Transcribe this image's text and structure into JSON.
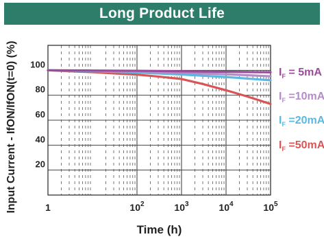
{
  "header": {
    "title": "Long Product Life",
    "background": "#2E7D6B"
  },
  "chart_data": {
    "type": "line",
    "title": "Long Product Life",
    "xlabel": "Time (h)",
    "ylabel": "Input Current - IfON/IfON(t=0) (%)",
    "x_scale": "log",
    "xlim": [
      1,
      100000
    ],
    "ylim": [
      0,
      120
    ],
    "x_ticks": [
      {
        "value": 1,
        "base": "1",
        "exp": ""
      },
      {
        "value": 100,
        "base": "10",
        "exp": "2"
      },
      {
        "value": 1000,
        "base": "10",
        "exp": "3"
      },
      {
        "value": 10000,
        "base": "10",
        "exp": "4"
      },
      {
        "value": 100000,
        "base": "10",
        "exp": "5"
      }
    ],
    "y_ticks": [
      20,
      40,
      60,
      80,
      100
    ],
    "grid": true,
    "legend_position": "right",
    "series": [
      {
        "name": "IF = 5mA",
        "label_main": "I",
        "label_sub": "F",
        "label_rest": " =  5mA",
        "color": "#9B4B9B",
        "points": [
          [
            1,
            100
          ],
          [
            10,
            99.8
          ],
          [
            100,
            99.6
          ],
          [
            1000,
            99.2
          ],
          [
            10000,
            98.8
          ],
          [
            100000,
            98.4
          ]
        ]
      },
      {
        "name": "IF = 10mA",
        "label_main": "I",
        "label_sub": "F",
        "label_rest": " =10mA",
        "color": "#B58BC8",
        "points": [
          [
            1,
            100
          ],
          [
            10,
            99.6
          ],
          [
            100,
            99.0
          ],
          [
            1000,
            98.0
          ],
          [
            10000,
            96.8
          ],
          [
            100000,
            95.2
          ]
        ]
      },
      {
        "name": "IF = 20mA",
        "label_main": "I",
        "label_sub": "F",
        "label_rest": " =20mA",
        "color": "#5BB8E0",
        "points": [
          [
            1,
            100
          ],
          [
            10,
            99.3
          ],
          [
            100,
            98.2
          ],
          [
            1000,
            96.6
          ],
          [
            10000,
            94.6
          ],
          [
            100000,
            92.0
          ]
        ]
      },
      {
        "name": "IF = 50mA",
        "label_main": "I",
        "label_sub": "F",
        "label_rest": " =50mA",
        "color": "#D95555",
        "points": [
          [
            1,
            100
          ],
          [
            3,
            99.2
          ],
          [
            10,
            98.5
          ],
          [
            30,
            97.5
          ],
          [
            100,
            96.5
          ],
          [
            300,
            95.0
          ],
          [
            1000,
            93.0
          ],
          [
            3000,
            89.0
          ],
          [
            10000,
            84.0
          ],
          [
            30000,
            79.0
          ],
          [
            100000,
            73.0
          ]
        ]
      }
    ]
  }
}
